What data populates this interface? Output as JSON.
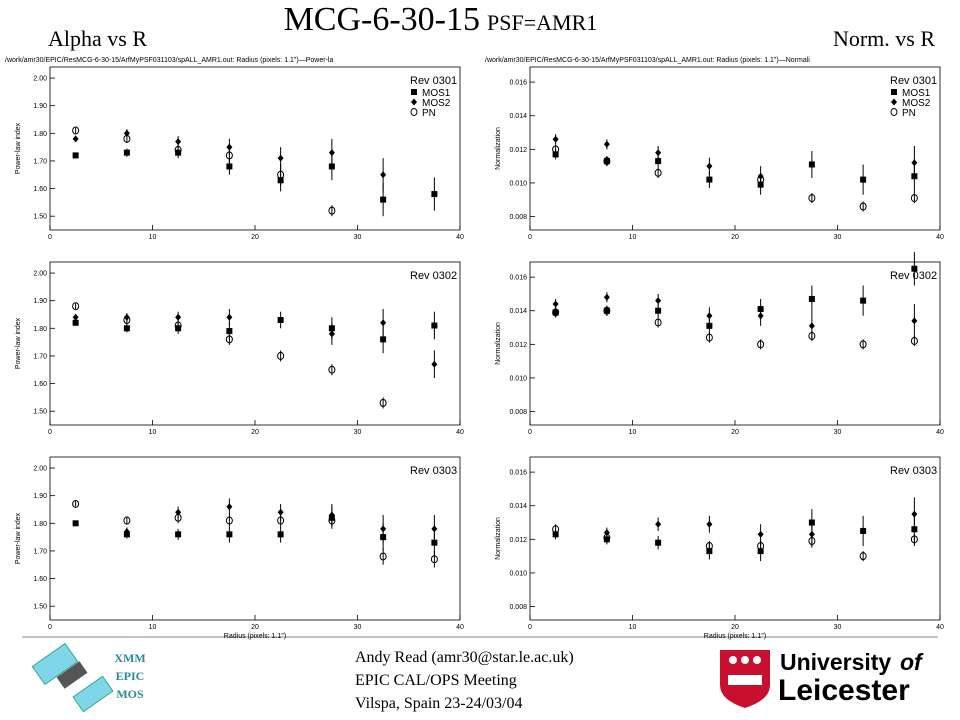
{
  "slide": {
    "title": "MCG-6-30-15",
    "subtitle": "PSF=AMR1",
    "left_heading": "Alpha vs R",
    "right_heading": "Norm. vs R",
    "badge": [
      "XMM",
      "EPIC",
      "MOS"
    ],
    "footer": [
      "Andy Read (amr30@star.le.ac.uk)",
      "EPIC CAL/OPS Meeting",
      "Vilspa, Spain 23-24/03/04"
    ],
    "logo": [
      "University",
      "of",
      "Leicester"
    ]
  },
  "chart_data": [
    {
      "type": "scatter",
      "title": "/work/amr30/EPIC/ResMCG-6-30-15/ArfMyPSF031103/spALL_AMR1.out: Radius (pixels: 1.1\")—Power-la",
      "y_label": "Power-law index",
      "annotation": "Rev 0301",
      "legend": "upper right",
      "x": [
        2.5,
        7.5,
        12.5,
        17.5,
        22.5,
        27.5,
        32.5,
        37.5
      ],
      "xlim": [
        0,
        40
      ],
      "xticks": [
        0,
        10,
        20,
        30,
        40
      ],
      "ylim": [
        1.45,
        2.04
      ],
      "yticks": [
        {
          "value": 1.5,
          "label": "1.50"
        },
        {
          "value": 1.6,
          "label": "1.60"
        },
        {
          "value": 1.7,
          "label": "1.70"
        },
        {
          "value": 1.8,
          "label": "1.80"
        },
        {
          "value": 1.9,
          "label": "1.90"
        },
        {
          "value": 2.0,
          "label": "2.00"
        }
      ],
      "series": [
        {
          "name": "MOS1",
          "marker": "square",
          "color": "#000000",
          "values": [
            1.72,
            1.73,
            1.73,
            1.68,
            1.63,
            1.68,
            1.56,
            1.58
          ],
          "errors": [
            0.01,
            0.015,
            0.02,
            0.03,
            0.04,
            0.05,
            0.06,
            0.06
          ]
        },
        {
          "name": "MOS2",
          "marker": "diamond",
          "color": "#000000",
          "values": [
            1.78,
            1.8,
            1.77,
            1.75,
            1.71,
            1.73,
            1.65,
            null
          ],
          "errors": [
            0.01,
            0.015,
            0.02,
            0.03,
            0.04,
            0.05,
            0.06,
            null
          ]
        },
        {
          "name": "PN",
          "marker": "circle",
          "color": "#000000",
          "values": [
            1.81,
            1.78,
            1.74,
            1.72,
            1.65,
            1.52,
            null,
            null
          ],
          "errors": [
            0.01,
            0.015,
            0.02,
            0.03,
            0.04,
            0.02,
            null,
            null
          ]
        }
      ]
    },
    {
      "type": "scatter",
      "annotation": "Rev 0302",
      "y_label": "Power-law index",
      "x": [
        2.5,
        7.5,
        12.5,
        17.5,
        22.5,
        27.5,
        32.5,
        37.5
      ],
      "xlim": [
        0,
        40
      ],
      "xticks": [
        0,
        10,
        20,
        30,
        40
      ],
      "ylim": [
        1.45,
        2.04
      ],
      "yticks": [
        {
          "value": 1.5,
          "label": "1.50"
        },
        {
          "value": 1.6,
          "label": "1.60"
        },
        {
          "value": 1.7,
          "label": "1.70"
        },
        {
          "value": 1.8,
          "label": "1.80"
        },
        {
          "value": 1.9,
          "label": "1.90"
        },
        {
          "value": 2.0,
          "label": "2.00"
        }
      ],
      "series": [
        {
          "marker": "square",
          "color": "#000000",
          "values": [
            1.82,
            1.8,
            1.8,
            1.79,
            1.83,
            1.8,
            1.76,
            1.81
          ],
          "errors": [
            0.01,
            0.015,
            0.02,
            0.03,
            0.03,
            0.04,
            0.05,
            0.05
          ]
        },
        {
          "marker": "diamond",
          "color": "#000000",
          "values": [
            1.84,
            1.84,
            1.84,
            1.84,
            null,
            1.78,
            1.82,
            1.67
          ],
          "errors": [
            0.01,
            0.015,
            0.02,
            0.03,
            null,
            0.04,
            0.05,
            0.05
          ]
        },
        {
          "marker": "circle",
          "color": "#000000",
          "values": [
            1.88,
            1.83,
            1.81,
            1.76,
            1.7,
            1.65,
            1.53,
            null
          ],
          "errors": [
            0.01,
            0.015,
            0.02,
            0.02,
            0.02,
            0.02,
            0.02,
            null
          ]
        }
      ]
    },
    {
      "type": "scatter",
      "annotation": "Rev 0303",
      "y_label": "Power-law index",
      "x_label": "Radius (pixels: 1.1\")",
      "x": [
        2.5,
        7.5,
        12.5,
        17.5,
        22.5,
        27.5,
        32.5,
        37.5
      ],
      "xlim": [
        0,
        40
      ],
      "xticks": [
        0,
        10,
        20,
        30,
        40
      ],
      "ylim": [
        1.45,
        2.04
      ],
      "yticks": [
        {
          "value": 1.5,
          "label": "1.50"
        },
        {
          "value": 1.6,
          "label": "1.60"
        },
        {
          "value": 1.7,
          "label": "1.70"
        },
        {
          "value": 1.8,
          "label": "1.80"
        },
        {
          "value": 1.9,
          "label": "1.90"
        },
        {
          "value": 2.0,
          "label": "2.00"
        }
      ],
      "series": [
        {
          "marker": "square",
          "color": "#000000",
          "values": [
            1.8,
            1.76,
            1.76,
            1.76,
            1.76,
            1.82,
            1.75,
            1.73
          ],
          "errors": [
            0.01,
            0.015,
            0.02,
            0.03,
            0.03,
            0.04,
            0.05,
            0.05
          ]
        },
        {
          "marker": "diamond",
          "color": "#000000",
          "values": [
            null,
            1.77,
            1.84,
            1.86,
            1.84,
            1.83,
            1.78,
            1.78
          ],
          "errors": [
            null,
            0.015,
            0.02,
            0.03,
            0.03,
            0.04,
            0.05,
            0.05
          ]
        },
        {
          "marker": "circle",
          "color": "#000000",
          "values": [
            1.87,
            1.81,
            1.82,
            1.81,
            1.81,
            1.81,
            1.68,
            1.67
          ],
          "errors": [
            0.01,
            0.015,
            0.02,
            0.02,
            0.02,
            0.02,
            0.03,
            0.03
          ]
        }
      ]
    },
    {
      "type": "scatter",
      "title": "/work/amr30/EPIC/ResMCG-6-30-15/ArfMyPSF031103/spALL_AMR1.out: Radius (pixels: 1.1\")—Normali",
      "y_label": "Normalization",
      "annotation": "Rev 0301",
      "legend": "upper right",
      "x": [
        2.5,
        7.5,
        12.5,
        17.5,
        22.5,
        27.5,
        32.5,
        37.5
      ],
      "xlim": [
        0,
        40
      ],
      "xticks": [
        0,
        10,
        20,
        30,
        40
      ],
      "ylim": [
        0.0072,
        0.0169
      ],
      "yticks": [
        0.008,
        {
          "value": 0.01,
          "label": "0.010"
        },
        0.012,
        0.014,
        0.016
      ],
      "series": [
        {
          "name": "MOS1",
          "marker": "square",
          "color": "#000000",
          "values": [
            0.0117,
            0.0113,
            0.0113,
            0.0102,
            0.0099,
            0.0111,
            0.0102,
            0.0104
          ],
          "errors": [
            0.0003,
            0.0003,
            0.0004,
            0.0005,
            0.0006,
            0.0008,
            0.0009,
            0.001
          ]
        },
        {
          "name": "MOS2",
          "marker": "diamond",
          "color": "#000000",
          "values": [
            0.0126,
            0.0123,
            0.0118,
            0.011,
            0.0104,
            null,
            null,
            0.0112
          ],
          "errors": [
            0.0003,
            0.0003,
            0.0004,
            0.0005,
            0.0006,
            null,
            null,
            0.001
          ]
        },
        {
          "name": "PN",
          "marker": "circle",
          "color": "#000000",
          "values": [
            0.012,
            0.0113,
            0.0106,
            null,
            0.0102,
            0.0091,
            0.0086,
            0.0091
          ],
          "errors": [
            0.0003,
            0.0003,
            0.0003,
            null,
            0.0003,
            0.0003,
            0.0003,
            0.0003
          ]
        }
      ]
    },
    {
      "type": "scatter",
      "annotation": "Rev 0302",
      "y_label": "Normalization",
      "x": [
        2.5,
        7.5,
        12.5,
        17.5,
        22.5,
        27.5,
        32.5,
        37.5
      ],
      "xlim": [
        0,
        40
      ],
      "xticks": [
        0,
        10,
        20,
        30,
        40
      ],
      "ylim": [
        0.0072,
        0.0169
      ],
      "yticks": [
        0.008,
        {
          "value": 0.01,
          "label": "0.010"
        },
        0.012,
        0.014,
        0.016
      ],
      "series": [
        {
          "marker": "square",
          "color": "#000000",
          "values": [
            0.0139,
            0.014,
            0.014,
            0.0131,
            0.0141,
            0.0147,
            0.0146,
            0.0165
          ],
          "errors": [
            0.0003,
            0.0003,
            0.0004,
            0.0005,
            0.0006,
            0.0008,
            0.0009,
            0.001
          ]
        },
        {
          "marker": "diamond",
          "color": "#000000",
          "values": [
            0.0144,
            0.0148,
            0.0146,
            0.0137,
            0.0137,
            0.0131,
            null,
            0.0134
          ],
          "errors": [
            0.0003,
            0.0003,
            0.0004,
            0.0005,
            0.0006,
            0.0008,
            null,
            0.001
          ]
        },
        {
          "marker": "circle",
          "color": "#000000",
          "values": [
            0.0139,
            0.014,
            0.0133,
            0.0124,
            0.012,
            0.0125,
            0.012,
            0.0122
          ],
          "errors": [
            0.0003,
            0.0003,
            0.0003,
            0.0003,
            0.0003,
            0.0003,
            0.0003,
            0.0003
          ]
        }
      ]
    },
    {
      "type": "scatter",
      "annotation": "Rev 0303",
      "y_label": "Normalization",
      "x_label": "Radius (pixels: 1.1\")",
      "x": [
        2.5,
        7.5,
        12.5,
        17.5,
        22.5,
        27.5,
        32.5,
        37.5
      ],
      "xlim": [
        0,
        40
      ],
      "xticks": [
        0,
        10,
        20,
        30,
        40
      ],
      "ylim": [
        0.0072,
        0.0169
      ],
      "yticks": [
        0.008,
        {
          "value": 0.01,
          "label": "0.010"
        },
        0.012,
        0.014,
        0.016
      ],
      "series": [
        {
          "marker": "square",
          "color": "#000000",
          "values": [
            0.0123,
            0.012,
            0.0118,
            0.0113,
            0.0113,
            0.013,
            0.0125,
            0.0126
          ],
          "errors": [
            0.0003,
            0.0003,
            0.0004,
            0.0005,
            0.0006,
            0.0008,
            0.0009,
            0.001
          ]
        },
        {
          "marker": "diamond",
          "color": "#000000",
          "values": [
            null,
            0.0124,
            0.0129,
            0.0129,
            0.0123,
            0.0123,
            null,
            0.0135
          ],
          "errors": [
            null,
            0.0003,
            0.0004,
            0.0005,
            0.0006,
            0.0008,
            null,
            0.001
          ]
        },
        {
          "marker": "circle",
          "color": "#000000",
          "values": [
            0.0126,
            0.0121,
            null,
            0.0116,
            0.0116,
            0.0119,
            0.011,
            0.012
          ],
          "errors": [
            0.0003,
            0.0003,
            null,
            0.0003,
            0.0003,
            0.0003,
            0.0003,
            0.0003
          ]
        }
      ]
    }
  ]
}
